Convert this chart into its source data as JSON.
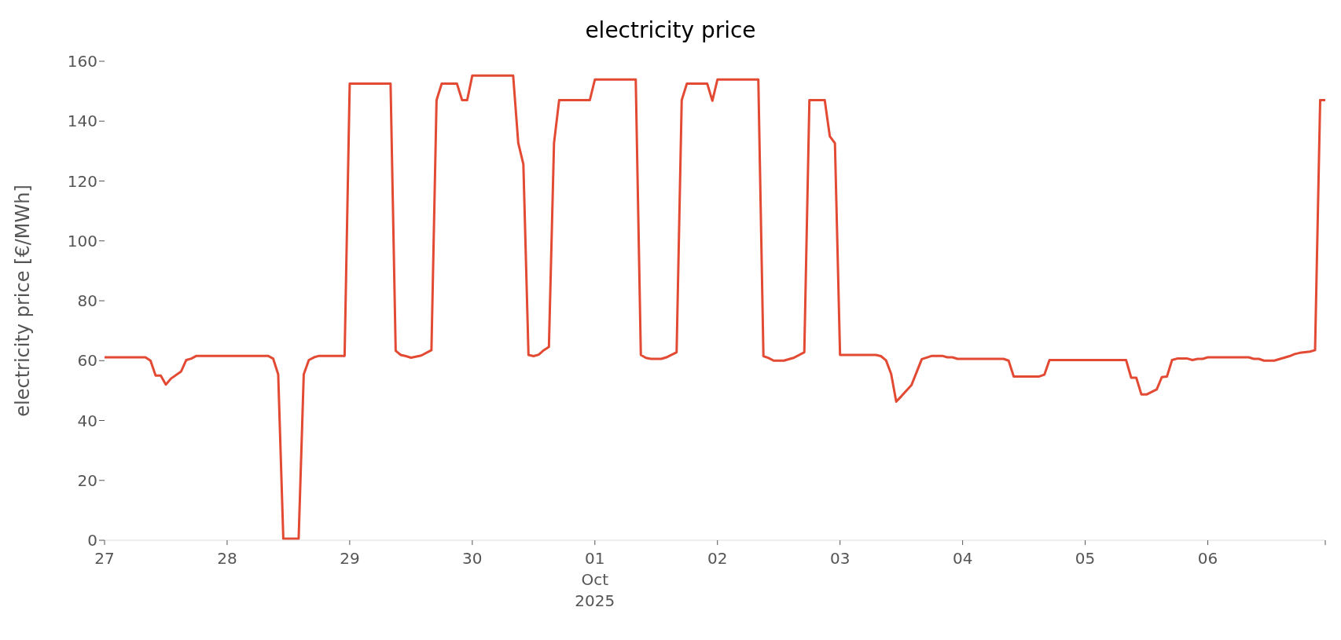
{
  "chart_data": {
    "type": "line",
    "title": "electricity price",
    "ylabel": "electricity price [€/MWh]",
    "x": [
      "2025-09-27T00:00",
      "2025-09-27T08:00",
      "2025-09-27T09:00",
      "2025-09-27T10:00",
      "2025-09-27T11:00",
      "2025-09-27T12:00",
      "2025-09-27T13:00",
      "2025-09-27T15:00",
      "2025-09-27T16:00",
      "2025-09-27T17:00",
      "2025-09-27T18:00",
      "2025-09-28T08:00",
      "2025-09-28T09:00",
      "2025-09-28T10:00",
      "2025-09-28T11:00",
      "2025-09-28T14:00",
      "2025-09-28T15:00",
      "2025-09-28T16:00",
      "2025-09-28T17:00",
      "2025-09-28T18:00",
      "2025-09-28T23:00",
      "2025-09-29T00:00",
      "2025-09-29T08:00",
      "2025-09-29T09:00",
      "2025-09-29T10:00",
      "2025-09-29T11:00",
      "2025-09-29T12:00",
      "2025-09-29T14:00",
      "2025-09-29T16:00",
      "2025-09-29T17:00",
      "2025-09-29T18:00",
      "2025-09-29T21:00",
      "2025-09-29T22:00",
      "2025-09-29T23:00",
      "2025-09-30T00:00",
      "2025-09-30T08:00",
      "2025-09-30T09:00",
      "2025-09-30T10:00",
      "2025-09-30T11:00",
      "2025-09-30T12:00",
      "2025-09-30T13:00",
      "2025-09-30T14:00",
      "2025-09-30T15:00",
      "2025-09-30T16:00",
      "2025-09-30T17:00",
      "2025-09-30T23:00",
      "2025-10-01T00:00",
      "2025-10-01T08:00",
      "2025-10-01T09:00",
      "2025-10-01T10:00",
      "2025-10-01T11:00",
      "2025-10-01T13:00",
      "2025-10-01T14:00",
      "2025-10-01T16:00",
      "2025-10-01T17:00",
      "2025-10-01T18:00",
      "2025-10-01T22:00",
      "2025-10-01T23:00",
      "2025-10-02T00:00",
      "2025-10-02T08:00",
      "2025-10-02T09:00",
      "2025-10-02T10:00",
      "2025-10-02T11:00",
      "2025-10-02T13:00",
      "2025-10-02T15:00",
      "2025-10-02T17:00",
      "2025-10-02T18:00",
      "2025-10-02T21:00",
      "2025-10-02T22:00",
      "2025-10-02T23:00",
      "2025-10-03T00:00",
      "2025-10-03T07:00",
      "2025-10-03T08:00",
      "2025-10-03T09:00",
      "2025-10-03T10:00",
      "2025-10-03T11:00",
      "2025-10-03T12:00",
      "2025-10-03T14:00",
      "2025-10-03T16:00",
      "2025-10-03T18:00",
      "2025-10-03T20:00",
      "2025-10-03T21:00",
      "2025-10-03T22:00",
      "2025-10-03T23:00",
      "2025-10-04T08:00",
      "2025-10-04T09:00",
      "2025-10-04T10:00",
      "2025-10-04T15:00",
      "2025-10-04T16:00",
      "2025-10-04T17:00",
      "2025-10-05T08:00",
      "2025-10-05T09:00",
      "2025-10-05T10:00",
      "2025-10-05T11:00",
      "2025-10-05T12:00",
      "2025-10-05T14:00",
      "2025-10-05T15:00",
      "2025-10-05T16:00",
      "2025-10-05T17:00",
      "2025-10-05T18:00",
      "2025-10-05T20:00",
      "2025-10-05T21:00",
      "2025-10-05T22:00",
      "2025-10-05T23:00",
      "2025-10-06T00:00",
      "2025-10-06T08:00",
      "2025-10-06T09:00",
      "2025-10-06T10:00",
      "2025-10-06T11:00",
      "2025-10-06T13:00",
      "2025-10-06T16:00",
      "2025-10-06T17:00",
      "2025-10-06T18:00",
      "2025-10-06T20:00",
      "2025-10-06T21:00",
      "2025-10-06T22:00",
      "2025-10-06T23:00"
    ],
    "values": [
      61.1,
      61.1,
      60,
      55,
      55,
      52,
      54,
      56.4,
      60.2,
      60.7,
      61.6,
      61.6,
      60.7,
      55.4,
      0.5,
      0.5,
      55.4,
      60.2,
      61.1,
      61.6,
      61.6,
      152.5,
      152.5,
      63.3,
      61.9,
      61.5,
      61,
      61.7,
      63.5,
      147,
      152.5,
      152.5,
      147,
      147,
      155.2,
      155.2,
      132.7,
      125.6,
      61.9,
      61.5,
      62,
      63.5,
      64.6,
      132.7,
      147,
      147,
      153.9,
      153.9,
      61.9,
      60.9,
      60.6,
      60.6,
      61.1,
      62.8,
      147,
      152.5,
      152.5,
      146.8,
      153.9,
      153.9,
      61.5,
      60.9,
      60,
      60,
      61,
      62.8,
      147,
      147,
      134.9,
      132.6,
      61.9,
      61.9,
      61.5,
      60.1,
      55.6,
      46.3,
      48.1,
      51.9,
      60.5,
      61.6,
      61.6,
      61.1,
      61.1,
      60.6,
      60.6,
      60,
      54.7,
      54.7,
      55.3,
      60.2,
      60.2,
      54.3,
      54.3,
      48.7,
      48.7,
      50.4,
      54.5,
      54.7,
      60.2,
      60.7,
      60.7,
      60.2,
      60.6,
      60.6,
      61.1,
      61.1,
      60.6,
      60.6,
      60,
      60,
      61.5,
      62.2,
      62.6,
      63,
      63.5,
      147,
      147
    ],
    "color": "#e24a33",
    "xlim": [
      "2025-09-27T00:00",
      "2025-10-06T23:00"
    ],
    "xticks": [
      {
        "value": "2025-09-27",
        "label": "27"
      },
      {
        "value": "2025-09-28",
        "label": "28"
      },
      {
        "value": "2025-09-29",
        "label": "29"
      },
      {
        "value": "2025-09-30",
        "label": "30"
      },
      {
        "value": "2025-10-01",
        "label": "01\nOct\n2025"
      },
      {
        "value": "2025-10-02",
        "label": "02"
      },
      {
        "value": "2025-10-03",
        "label": "03"
      },
      {
        "value": "2025-10-04",
        "label": "04"
      },
      {
        "value": "2025-10-05",
        "label": "05"
      },
      {
        "value": "2025-10-06",
        "label": "06"
      },
      {
        "value": "2025-10-06T23:00",
        "label": null
      }
    ],
    "ylim": [
      0,
      160
    ],
    "yticks": [
      0,
      20,
      40,
      60,
      80,
      100,
      120,
      140,
      160
    ],
    "marker": "none",
    "line_style": "solid"
  }
}
